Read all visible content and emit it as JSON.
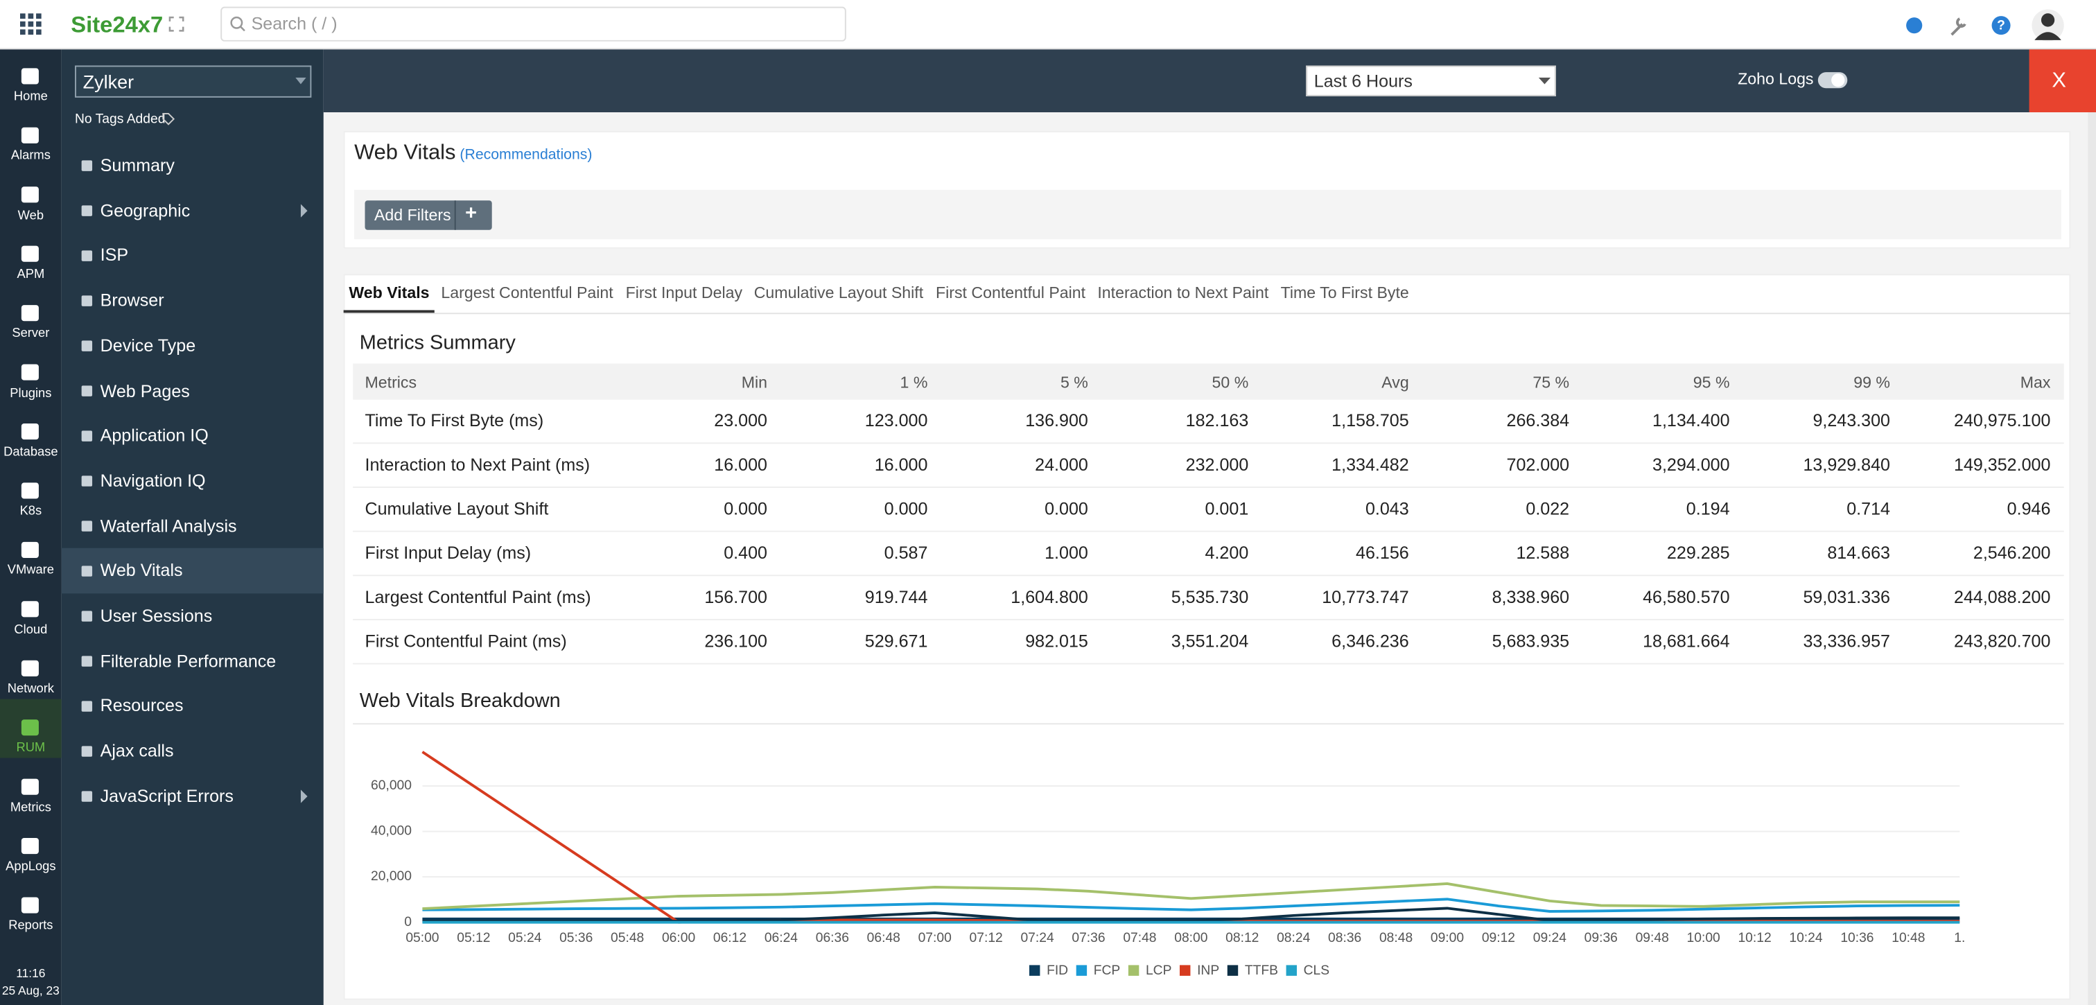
{
  "header": {
    "brand": "Site24x7",
    "search_placeholder": "Search ( / )"
  },
  "nav": {
    "items": [
      {
        "label": "Home"
      },
      {
        "label": "Alarms"
      },
      {
        "label": "Web"
      },
      {
        "label": "APM"
      },
      {
        "label": "Server"
      },
      {
        "label": "Plugins"
      },
      {
        "label": "Database"
      },
      {
        "label": "K8s"
      },
      {
        "label": "VMware"
      },
      {
        "label": "Cloud"
      },
      {
        "label": "Network"
      },
      {
        "label": "RUM",
        "active": true
      },
      {
        "label": "Metrics"
      },
      {
        "label": "AppLogs"
      },
      {
        "label": "Reports"
      }
    ],
    "time": "11:16",
    "date": "25 Aug, 23"
  },
  "sidebar": {
    "monitor": "Zylker",
    "tags": "No Tags Added",
    "items": [
      {
        "label": "Summary"
      },
      {
        "label": "Geographic",
        "expandable": true
      },
      {
        "label": "ISP"
      },
      {
        "label": "Browser"
      },
      {
        "label": "Device Type"
      },
      {
        "label": "Web Pages"
      },
      {
        "label": "Application IQ"
      },
      {
        "label": "Navigation IQ"
      },
      {
        "label": "Waterfall Analysis"
      },
      {
        "label": "Web Vitals",
        "active": true
      },
      {
        "label": "User Sessions"
      },
      {
        "label": "Filterable Performance"
      },
      {
        "label": "Resources"
      },
      {
        "label": "Ajax calls"
      },
      {
        "label": "JavaScript Errors",
        "expandable": true
      }
    ]
  },
  "toolbar": {
    "time_range": "Last 6 Hours",
    "zoho_logs": "Zoho Logs :",
    "close": "X"
  },
  "panel": {
    "title": "Web Vitals",
    "link": "(Recommendations)",
    "add_filters": "Add Filters",
    "add_icon": "+"
  },
  "tabs": [
    {
      "label": "Web Vitals",
      "active": true
    },
    {
      "label": "Largest Contentful Paint"
    },
    {
      "label": "First Input Delay"
    },
    {
      "label": "Cumulative Layout Shift"
    },
    {
      "label": "First Contentful Paint"
    },
    {
      "label": "Interaction to Next Paint"
    },
    {
      "label": "Time To First Byte"
    }
  ],
  "metrics": {
    "title": "Metrics Summary",
    "columns": [
      "Metrics",
      "Min",
      "1 %",
      "5 %",
      "50 %",
      "Avg",
      "75 %",
      "95 %",
      "99 %",
      "Max"
    ],
    "rows": [
      [
        "Time To First Byte (ms)",
        "23.000",
        "123.000",
        "136.900",
        "182.163",
        "1,158.705",
        "266.384",
        "1,134.400",
        "9,243.300",
        "240,975.100"
      ],
      [
        "Interaction to Next Paint (ms)",
        "16.000",
        "16.000",
        "24.000",
        "232.000",
        "1,334.482",
        "702.000",
        "3,294.000",
        "13,929.840",
        "149,352.000"
      ],
      [
        "Cumulative Layout Shift",
        "0.000",
        "0.000",
        "0.000",
        "0.001",
        "0.043",
        "0.022",
        "0.194",
        "0.714",
        "0.946"
      ],
      [
        "First Input Delay (ms)",
        "0.400",
        "0.587",
        "1.000",
        "4.200",
        "46.156",
        "12.588",
        "229.285",
        "814.663",
        "2,546.200"
      ],
      [
        "Largest Contentful Paint (ms)",
        "156.700",
        "919.744",
        "1,604.800",
        "5,535.730",
        "10,773.747",
        "8,338.960",
        "46,580.570",
        "59,031.336",
        "244,088.200"
      ],
      [
        "First Contentful Paint (ms)",
        "236.100",
        "529.671",
        "982.015",
        "3,551.204",
        "6,346.236",
        "5,683.935",
        "18,681.664",
        "33,336.957",
        "243,820.700"
      ]
    ]
  },
  "chart_data": {
    "type": "line",
    "title": "Web Vitals Breakdown",
    "categories": [
      "05:00",
      "05:12",
      "05:24",
      "05:36",
      "05:48",
      "06:00",
      "06:12",
      "06:24",
      "06:36",
      "06:48",
      "07:00",
      "07:12",
      "07:24",
      "07:36",
      "07:48",
      "08:00",
      "08:12",
      "08:24",
      "08:36",
      "08:48",
      "09:00",
      "09:12",
      "09:24",
      "09:36",
      "09:48",
      "10:00",
      "10:12",
      "10:24",
      "10:36",
      "10:48",
      "1."
    ],
    "ylim": [
      0,
      80000
    ],
    "yticks": [
      0,
      {
        "value": 20000,
        "label": "20,000"
      },
      {
        "value": 40000,
        "label": "40,000"
      },
      {
        "value": 60000,
        "label": "60,000"
      }
    ],
    "grid": true,
    "legend": "bottom",
    "series": [
      {
        "name": "FID",
        "color": "#0b3c5d",
        "values": [
          1500,
          1500,
          1500,
          1500,
          1500,
          1500,
          1500,
          1500,
          1500,
          1500,
          1500,
          1500,
          1500,
          1500,
          1500,
          1500,
          1500,
          1500,
          1500,
          1500,
          1500,
          1500,
          1500,
          1500,
          1500,
          1500,
          1500,
          1500,
          1500,
          1500,
          1500
        ]
      },
      {
        "name": "FCP",
        "color": "#1a9bd7",
        "values": [
          5500,
          5600,
          5800,
          6000,
          6100,
          6200,
          6400,
          6700,
          7200,
          7700,
          8200,
          7700,
          7200,
          6600,
          6000,
          5500,
          6200,
          7200,
          8200,
          9200,
          10200,
          7200,
          4800,
          5000,
          5300,
          5800,
          6300,
          6800,
          7200,
          7400,
          7500
        ]
      },
      {
        "name": "LCP",
        "color": "#a4c06a",
        "values": [
          6000,
          7100,
          8200,
          9300,
          10400,
          11500,
          11900,
          12300,
          13100,
          14300,
          15500,
          15100,
          14700,
          13700,
          12100,
          10500,
          11800,
          13100,
          14400,
          15700,
          17000,
          13200,
          9400,
          7400,
          7200,
          7000,
          7800,
          8600,
          9000,
          9000,
          9000
        ]
      },
      {
        "name": "INP",
        "color": "#d63b1f",
        "values": [
          75000,
          60000,
          45000,
          30000,
          15000,
          0,
          500,
          1000,
          1000,
          1000,
          1000,
          800,
          500,
          500,
          500,
          500,
          500,
          500,
          500,
          500,
          500,
          500,
          500,
          500,
          500,
          500,
          500,
          500,
          500,
          500,
          500
        ]
      },
      {
        "name": "TTFB",
        "color": "#0d2f45",
        "values": [
          500,
          500,
          500,
          500,
          500,
          500,
          700,
          1000,
          2000,
          3200,
          4200,
          2500,
          800,
          600,
          600,
          600,
          1500,
          3000,
          4200,
          5200,
          6200,
          3500,
          800,
          1000,
          1200,
          1500,
          1700,
          1800,
          1900,
          2000,
          2000
        ]
      },
      {
        "name": "CLS",
        "color": "#23a3c9",
        "values": [
          0,
          0,
          0,
          0,
          0,
          0,
          0,
          0,
          0,
          0,
          0,
          0,
          0,
          0,
          0,
          0,
          0,
          0,
          0,
          0,
          0,
          0,
          0,
          0,
          0,
          0,
          0,
          0,
          0,
          0,
          0
        ]
      }
    ]
  }
}
